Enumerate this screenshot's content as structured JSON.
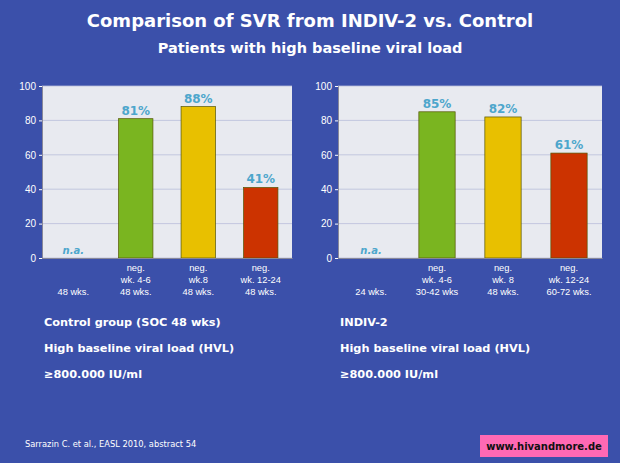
{
  "title": "Comparison of SVR from INDIV-2 vs. Control",
  "subtitle": "Patients with high baseline viral load",
  "annotations": [
    "Sarrazin C. et al., EASL 2010, abstract  54",
    "www.hivandmore.de"
  ],
  "chart_data": [
    {
      "type": "bar",
      "categories": [
        "48 wks.",
        "neg.\nwk. 4-6\n48 wks.",
        "neg.\nwk.8\n48 wks.",
        "neg.\nwk. 12-24\n48 wks."
      ],
      "values": [
        null,
        81,
        88,
        41
      ],
      "value_labels": [
        "n.a.",
        "81%",
        "88%",
        "41%"
      ],
      "data_labels": true,
      "colors": [
        null,
        "#7ab520",
        "#e8c000",
        "#cc3300"
      ],
      "ylim": [
        0,
        100
      ],
      "yticks": [
        0,
        20,
        40,
        60,
        80,
        100
      ],
      "grid": true,
      "annotations": [
        "Control group (SOC 48 wks)",
        "High baseline viral load (HVL)",
        "≥800.000 IU/ml"
      ]
    },
    {
      "type": "bar",
      "categories": [
        "24 wks.",
        "neg.\nwk. 4-6\n30-42 wks",
        "neg.\nwk. 8\n48 wks.",
        "neg.\nwk. 12-24\n60-72 wks."
      ],
      "values": [
        null,
        85,
        82,
        61
      ],
      "value_labels": [
        "n.a.",
        "85%",
        "82%",
        "61%"
      ],
      "data_labels": true,
      "colors": [
        null,
        "#7ab520",
        "#e8c000",
        "#cc3300"
      ],
      "ylim": [
        0,
        100
      ],
      "yticks": [
        0,
        20,
        40,
        60,
        80,
        100
      ],
      "grid": true,
      "annotations": [
        "INDIV-2",
        "High baseline viral load (HVL)",
        "≥800.000 IU/ml"
      ]
    }
  ]
}
